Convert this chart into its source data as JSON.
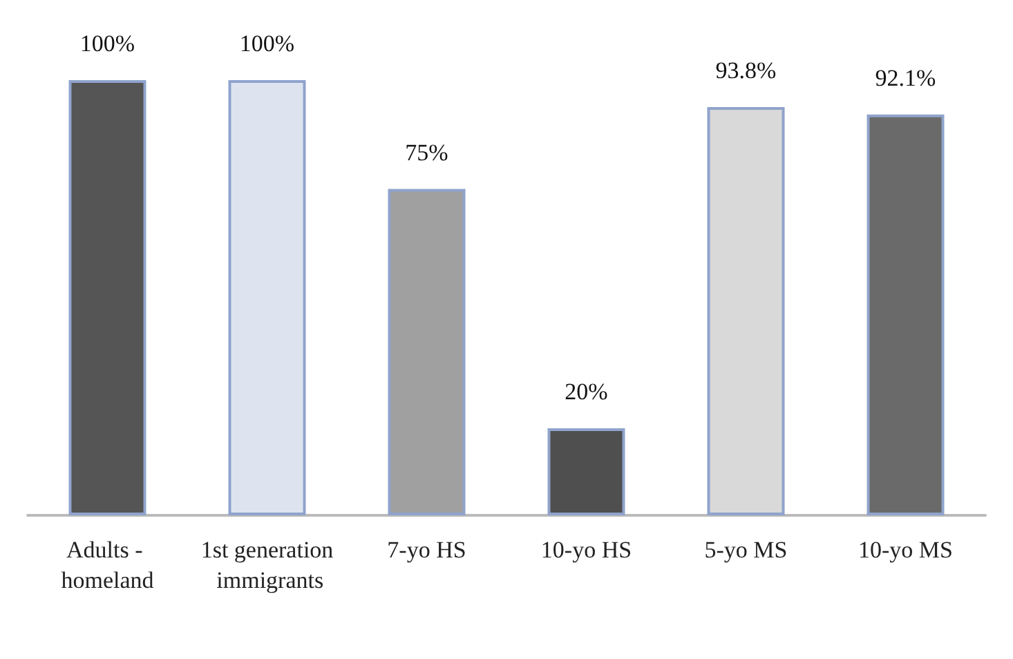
{
  "chart_data": {
    "type": "bar",
    "categories": [
      "Adults - homeland",
      "1st generation immigrants",
      "7-yo HS",
      "10-yo HS",
      "5-yo MS",
      "10-yo MS"
    ],
    "values": [
      100,
      100,
      75,
      20,
      93.8,
      92.1
    ],
    "colors": [
      "#555555",
      "#dde4f0",
      "#a0a0a0",
      "#4f4f4f",
      "#d9d9d9",
      "#6a6a6a"
    ],
    "value_labels": [
      "100%",
      "100%",
      "75%",
      "20%",
      "93.8%",
      "92.1%"
    ]
  }
}
